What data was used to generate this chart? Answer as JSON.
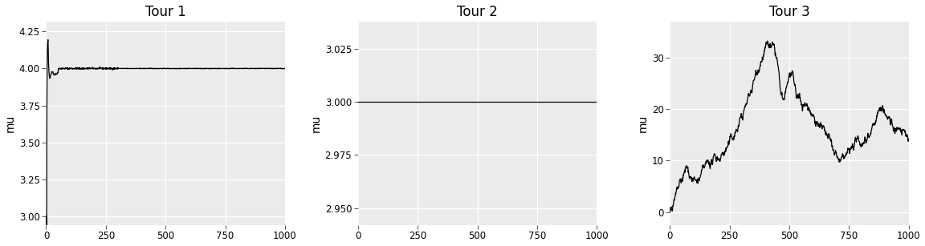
{
  "titles": [
    "Tour 1",
    "Tour 2",
    "Tour 3"
  ],
  "ylabel": "mu",
  "xlim": [
    0,
    1000
  ],
  "plot1": {
    "ylim": [
      2.94,
      4.32
    ],
    "yticks": [
      3.0,
      3.25,
      3.5,
      3.75,
      4.0,
      4.25
    ],
    "ytick_labels": [
      "3.00",
      "3.25",
      "3.50",
      "3.75",
      "4.00",
      "4.25"
    ]
  },
  "plot2": {
    "ylim": [
      2.942,
      3.038
    ],
    "yticks": [
      2.95,
      2.975,
      3.0,
      3.025
    ],
    "ytick_labels": [
      "2.950",
      "2.975",
      "3.000",
      "3.025"
    ]
  },
  "plot3": {
    "ylim": [
      -2.5,
      37
    ],
    "yticks": [
      0,
      10,
      20,
      30
    ],
    "ytick_labels": [
      "0",
      "10",
      "20",
      "30"
    ]
  },
  "xticks": [
    0,
    250,
    500,
    750,
    1000
  ],
  "bg_color": "#EBEBEB",
  "fig_color": "#FFFFFF",
  "line_color": "#000000",
  "grid_color": "#FFFFFF",
  "line_width": 0.9,
  "title_fontsize": 12,
  "label_fontsize": 10,
  "tick_fontsize": 8.5
}
